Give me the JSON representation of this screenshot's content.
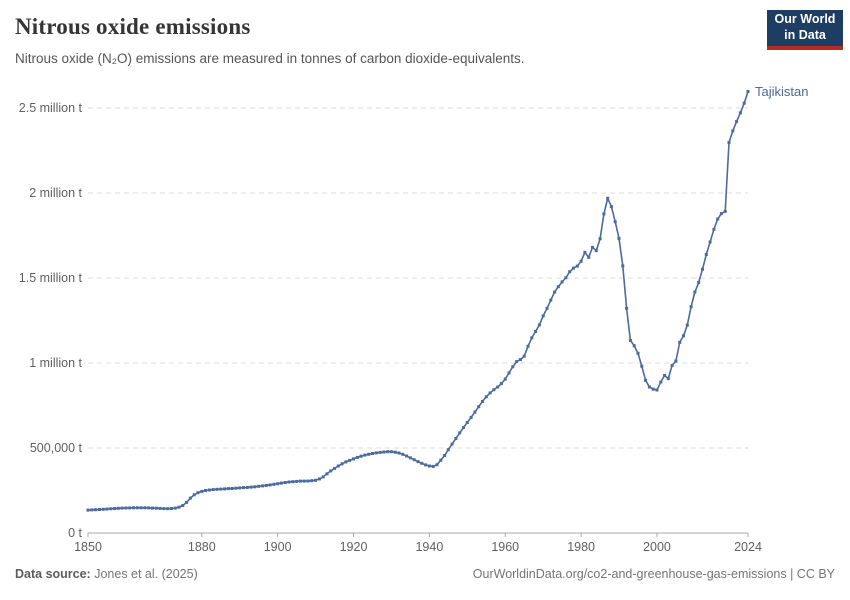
{
  "header": {
    "title": "Nitrous oxide emissions",
    "subtitle": "Nitrous oxide (N₂O) emissions are measured in tonnes of carbon dioxide-equivalents."
  },
  "logo": {
    "line1": "Our World",
    "line2": "in Data",
    "bg_color": "#1d3d63",
    "bar_color": "#b62b29"
  },
  "footer": {
    "source_label": "Data source:",
    "source_value": " Jones et al. (2025)",
    "credit": "OurWorldinData.org/co2-and-greenhouse-gas-emissions | CC BY"
  },
  "colors": {
    "line": "#4C6A9C",
    "grid": "#dcdcdc",
    "axis": "#a9a9a9",
    "tick_text": "#5f5f5f"
  },
  "chart_data": {
    "type": "line",
    "title": "Nitrous oxide emissions",
    "ylabel": "",
    "xlabel": "",
    "unit": "t CO₂-eq",
    "xlim": [
      1850,
      2024
    ],
    "ylim": [
      0,
      2500000
    ],
    "grid": "horizontal-dashed",
    "legend_position": "end-of-line",
    "y_ticks": [
      {
        "value": 0,
        "label": "0 t"
      },
      {
        "value": 500000,
        "label": "500,000 t"
      },
      {
        "value": 1000000,
        "label": "1 million t"
      },
      {
        "value": 1500000,
        "label": "1.5 million t"
      },
      {
        "value": 2000000,
        "label": "2 million t"
      },
      {
        "value": 2500000,
        "label": "2.5 million t"
      }
    ],
    "x_ticks": [
      1850,
      1880,
      1900,
      1920,
      1940,
      1960,
      1980,
      2000,
      2024
    ],
    "series": [
      {
        "name": "Tajikistan",
        "color": "#4C6A9C",
        "points": [
          [
            1850,
            135000
          ],
          [
            1851,
            136000
          ],
          [
            1852,
            137000
          ],
          [
            1853,
            138500
          ],
          [
            1854,
            139500
          ],
          [
            1855,
            141000
          ],
          [
            1856,
            142500
          ],
          [
            1857,
            144000
          ],
          [
            1858,
            145500
          ],
          [
            1859,
            146500
          ],
          [
            1860,
            147000
          ],
          [
            1861,
            147500
          ],
          [
            1862,
            148000
          ],
          [
            1863,
            148000
          ],
          [
            1864,
            148000
          ],
          [
            1865,
            148000
          ],
          [
            1866,
            147500
          ],
          [
            1867,
            146500
          ],
          [
            1868,
            146000
          ],
          [
            1869,
            144500
          ],
          [
            1870,
            143500
          ],
          [
            1871,
            143000
          ],
          [
            1872,
            144000
          ],
          [
            1873,
            146500
          ],
          [
            1874,
            152000
          ],
          [
            1875,
            162000
          ],
          [
            1876,
            180000
          ],
          [
            1877,
            205000
          ],
          [
            1878,
            225000
          ],
          [
            1879,
            237000
          ],
          [
            1880,
            245000
          ],
          [
            1881,
            250000
          ],
          [
            1882,
            253000
          ],
          [
            1883,
            255000
          ],
          [
            1884,
            257000
          ],
          [
            1885,
            258000
          ],
          [
            1886,
            259500
          ],
          [
            1887,
            261000
          ],
          [
            1888,
            262000
          ],
          [
            1889,
            263500
          ],
          [
            1890,
            265000
          ],
          [
            1891,
            267000
          ],
          [
            1892,
            268500
          ],
          [
            1893,
            270000
          ],
          [
            1894,
            272000
          ],
          [
            1895,
            274500
          ],
          [
            1896,
            277000
          ],
          [
            1897,
            280000
          ],
          [
            1898,
            283000
          ],
          [
            1899,
            286500
          ],
          [
            1900,
            290000
          ],
          [
            1901,
            293500
          ],
          [
            1902,
            297000
          ],
          [
            1903,
            300000
          ],
          [
            1904,
            302000
          ],
          [
            1905,
            303500
          ],
          [
            1906,
            305000
          ],
          [
            1907,
            305500
          ],
          [
            1908,
            306000
          ],
          [
            1909,
            307500
          ],
          [
            1910,
            310000
          ],
          [
            1911,
            318000
          ],
          [
            1912,
            330000
          ],
          [
            1913,
            348000
          ],
          [
            1914,
            365000
          ],
          [
            1915,
            380000
          ],
          [
            1916,
            394000
          ],
          [
            1917,
            407000
          ],
          [
            1918,
            418000
          ],
          [
            1919,
            427000
          ],
          [
            1920,
            436000
          ],
          [
            1921,
            445000
          ],
          [
            1922,
            452000
          ],
          [
            1923,
            458000
          ],
          [
            1924,
            463000
          ],
          [
            1925,
            467500
          ],
          [
            1926,
            471000
          ],
          [
            1927,
            474000
          ],
          [
            1928,
            476500
          ],
          [
            1929,
            478000
          ],
          [
            1930,
            478000
          ],
          [
            1931,
            475500
          ],
          [
            1932,
            470500
          ],
          [
            1933,
            463000
          ],
          [
            1934,
            453000
          ],
          [
            1935,
            442000
          ],
          [
            1936,
            431000
          ],
          [
            1937,
            420000
          ],
          [
            1938,
            410000
          ],
          [
            1939,
            400500
          ],
          [
            1940,
            394000
          ],
          [
            1941,
            392000
          ],
          [
            1942,
            402000
          ],
          [
            1943,
            428000
          ],
          [
            1944,
            456000
          ],
          [
            1945,
            490000
          ],
          [
            1946,
            523000
          ],
          [
            1947,
            556000
          ],
          [
            1948,
            589000
          ],
          [
            1949,
            620000
          ],
          [
            1950,
            650000
          ],
          [
            1951,
            680000
          ],
          [
            1952,
            711000
          ],
          [
            1953,
            743000
          ],
          [
            1954,
            774000
          ],
          [
            1955,
            801000
          ],
          [
            1956,
            824000
          ],
          [
            1957,
            843000
          ],
          [
            1958,
            859000
          ],
          [
            1959,
            879000
          ],
          [
            1960,
            905000
          ],
          [
            1961,
            942000
          ],
          [
            1962,
            978000
          ],
          [
            1963,
            1008000
          ],
          [
            1964,
            1020000
          ],
          [
            1965,
            1040000
          ],
          [
            1966,
            1098000
          ],
          [
            1967,
            1148000
          ],
          [
            1968,
            1186000
          ],
          [
            1969,
            1224000
          ],
          [
            1970,
            1277000
          ],
          [
            1971,
            1322000
          ],
          [
            1972,
            1370000
          ],
          [
            1973,
            1417000
          ],
          [
            1974,
            1449000
          ],
          [
            1975,
            1477000
          ],
          [
            1976,
            1502000
          ],
          [
            1977,
            1537000
          ],
          [
            1978,
            1558000
          ],
          [
            1979,
            1570000
          ],
          [
            1980,
            1598000
          ],
          [
            1981,
            1651000
          ],
          [
            1982,
            1622000
          ],
          [
            1983,
            1680000
          ],
          [
            1984,
            1661000
          ],
          [
            1985,
            1731000
          ],
          [
            1986,
            1877000
          ],
          [
            1987,
            1969000
          ],
          [
            1988,
            1920000
          ],
          [
            1989,
            1831000
          ],
          [
            1990,
            1733000
          ],
          [
            1991,
            1571000
          ],
          [
            1992,
            1322000
          ],
          [
            1993,
            1133000
          ],
          [
            1994,
            1102000
          ],
          [
            1995,
            1057000
          ],
          [
            1996,
            981000
          ],
          [
            1997,
            898000
          ],
          [
            1998,
            859000
          ],
          [
            1999,
            846000
          ],
          [
            2000,
            841000
          ],
          [
            2001,
            888000
          ],
          [
            2002,
            927000
          ],
          [
            2003,
            908000
          ],
          [
            2004,
            986000
          ],
          [
            2005,
            1012000
          ],
          [
            2006,
            1121000
          ],
          [
            2007,
            1160000
          ],
          [
            2008,
            1223000
          ],
          [
            2009,
            1331000
          ],
          [
            2010,
            1417000
          ],
          [
            2011,
            1474000
          ],
          [
            2012,
            1551000
          ],
          [
            2013,
            1638000
          ],
          [
            2014,
            1712000
          ],
          [
            2015,
            1786000
          ],
          [
            2016,
            1847000
          ],
          [
            2017,
            1879000
          ],
          [
            2018,
            1892000
          ],
          [
            2019,
            2297000
          ],
          [
            2020,
            2365000
          ],
          [
            2021,
            2421000
          ],
          [
            2022,
            2472000
          ],
          [
            2023,
            2528000
          ],
          [
            2024,
            2597000
          ]
        ]
      }
    ]
  }
}
